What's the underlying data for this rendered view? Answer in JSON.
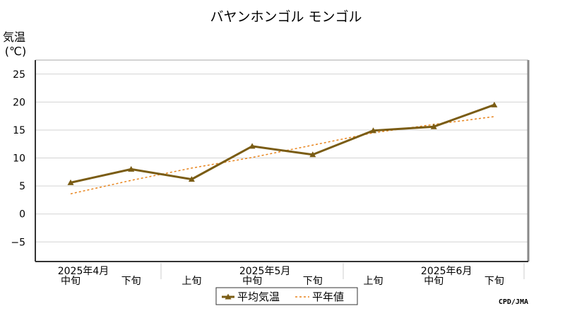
{
  "chart_data": {
    "type": "line",
    "title": "バヤンホンゴル モンゴル",
    "ylabel_line1": "気温",
    "ylabel_line2": "(℃)",
    "ylim": [
      -8.5,
      27.5
    ],
    "yticks": [
      -5,
      0,
      5,
      10,
      15,
      20,
      25
    ],
    "grid": true,
    "categories": [
      "中旬",
      "下旬",
      "上旬",
      "中旬",
      "下旬",
      "上旬",
      "中旬",
      "下旬"
    ],
    "month_labels": [
      {
        "label": "2025年4月",
        "category_index": 0
      },
      {
        "label": "2025年5月",
        "category_index": 3
      },
      {
        "label": "2025年6月",
        "category_index": 6
      }
    ],
    "series": [
      {
        "name": "平均気温",
        "style": "solid-marker",
        "color": "#7a5c14",
        "values": [
          5.6,
          8.0,
          6.2,
          12.1,
          10.6,
          14.9,
          15.6,
          19.5
        ]
      },
      {
        "name": "平年値",
        "style": "dashed",
        "color": "#e8841c",
        "values": [
          3.6,
          6.0,
          8.2,
          10.1,
          12.3,
          14.5,
          16.0,
          17.4
        ]
      }
    ],
    "legend_position": "bottom-center",
    "credit": "CPD/JMA"
  }
}
